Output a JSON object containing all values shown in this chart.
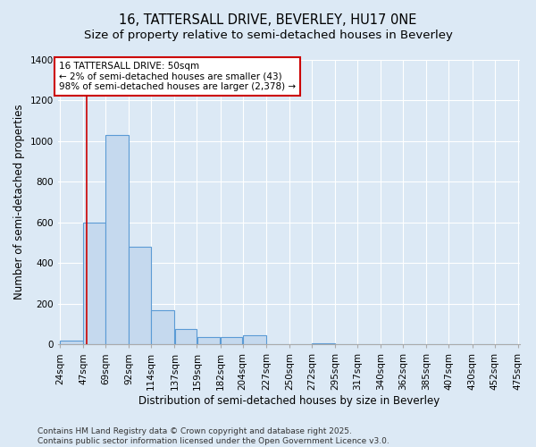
{
  "title_line1": "16, TATTERSALL DRIVE, BEVERLEY, HU17 0NE",
  "title_line2": "Size of property relative to semi-detached houses in Beverley",
  "xlabel": "Distribution of semi-detached houses by size in Beverley",
  "ylabel": "Number of semi-detached properties",
  "bin_edges": [
    24,
    47,
    69,
    92,
    114,
    137,
    159,
    182,
    204,
    227,
    250,
    272,
    295,
    317,
    340,
    362,
    385,
    407,
    430,
    452,
    475
  ],
  "bar_heights": [
    20,
    600,
    1030,
    480,
    170,
    75,
    35,
    35,
    45,
    0,
    0,
    5,
    0,
    0,
    0,
    0,
    0,
    0,
    0,
    0
  ],
  "bar_color": "#c5d9ee",
  "bar_edge_color": "#5b9bd5",
  "background_color": "#dce9f5",
  "grid_color": "#ffffff",
  "vline_x": 50,
  "vline_color": "#cc0000",
  "annotation_title": "16 TATTERSALL DRIVE: 50sqm",
  "annotation_line2": "← 2% of semi-detached houses are smaller (43)",
  "annotation_line3": "98% of semi-detached houses are larger (2,378) →",
  "annotation_box_color": "#cc0000",
  "ylim": [
    0,
    1400
  ],
  "yticks": [
    0,
    200,
    400,
    600,
    800,
    1000,
    1200,
    1400
  ],
  "footer_line1": "Contains HM Land Registry data © Crown copyright and database right 2025.",
  "footer_line2": "Contains public sector information licensed under the Open Government Licence v3.0.",
  "title_fontsize": 10.5,
  "subtitle_fontsize": 9.5,
  "axis_label_fontsize": 8.5,
  "tick_fontsize": 7.5,
  "annotation_fontsize": 7.5,
  "footer_fontsize": 6.5
}
